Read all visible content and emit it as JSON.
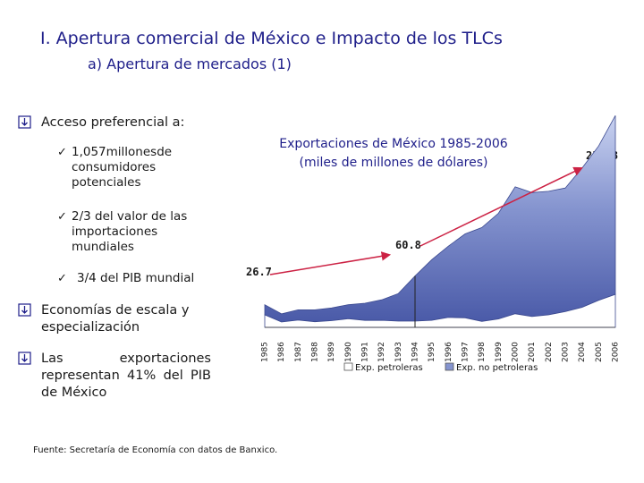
{
  "header": {
    "title": "I. Apertura comercial de México e Impacto de los TLCs",
    "subtitle": "a) Apertura de mercados (1)"
  },
  "bullets": [
    {
      "text": "Acceso preferencial a:",
      "sub": [
        "1,057millonesde consumidores potenciales",
        "2/3 del valor de las importaciones mundiales",
        "3/4 del PIB mundial"
      ]
    },
    {
      "text": "Economías de escala y especialización"
    },
    {
      "text": "Las exportaciones representan 41% del PIB de México"
    }
  ],
  "icons": {
    "bullet_marker": "down-arrow-box-icon",
    "sub_marker": "check-mark-icon"
  },
  "chart_data": {
    "type": "area",
    "title": "Exportaciones de México 1985-2006",
    "subtitle": "(miles de millones de dólares)",
    "categories": [
      "1985",
      "1986",
      "1987",
      "1988",
      "1989",
      "1990",
      "1991",
      "1992",
      "1993",
      "1994",
      "1995",
      "1996",
      "1997",
      "1998",
      "1999",
      "2000",
      "2001",
      "2002",
      "2003",
      "2004",
      "2005",
      "2006"
    ],
    "stacked": true,
    "series": [
      {
        "name": "Exp. petroleras",
        "color": "#ffffff",
        "values": [
          14.8,
          6.3,
          8.6,
          6.7,
          7.9,
          10.1,
          8.2,
          8.3,
          7.4,
          7.4,
          8.4,
          11.7,
          11.3,
          7.1,
          9.9,
          16.1,
          12.8,
          14.8,
          18.6,
          23.7,
          31.9,
          39.0
        ]
      },
      {
        "name": "Exp. no petroleras",
        "color": "#7f8fc8",
        "values": [
          11.9,
          9.7,
          12.1,
          14.0,
          15.0,
          16.7,
          20.3,
          24.3,
          32.6,
          53.4,
          71.6,
          84.3,
          99.1,
          110.9,
          125.0,
          149.9,
          146.5,
          146.0,
          146.1,
          164.4,
          182.4,
          211.3
        ]
      }
    ],
    "annotations": [
      {
        "label": "26.7",
        "year": "1985"
      },
      {
        "label": "60.8",
        "year": "1994"
      },
      {
        "label": "250.3",
        "year": "2006"
      }
    ],
    "ylim": [
      0,
      260
    ],
    "grid": false,
    "legend_position": "bottom",
    "legend": [
      "Exp. petroleras",
      "Exp. no petroleras"
    ]
  },
  "source": "Fuente: Secretaría de Economía con datos de Banxico.",
  "colors": {
    "title": "#1f1f8a",
    "area": "#7f8fc8",
    "arrow": "#cc2244"
  }
}
